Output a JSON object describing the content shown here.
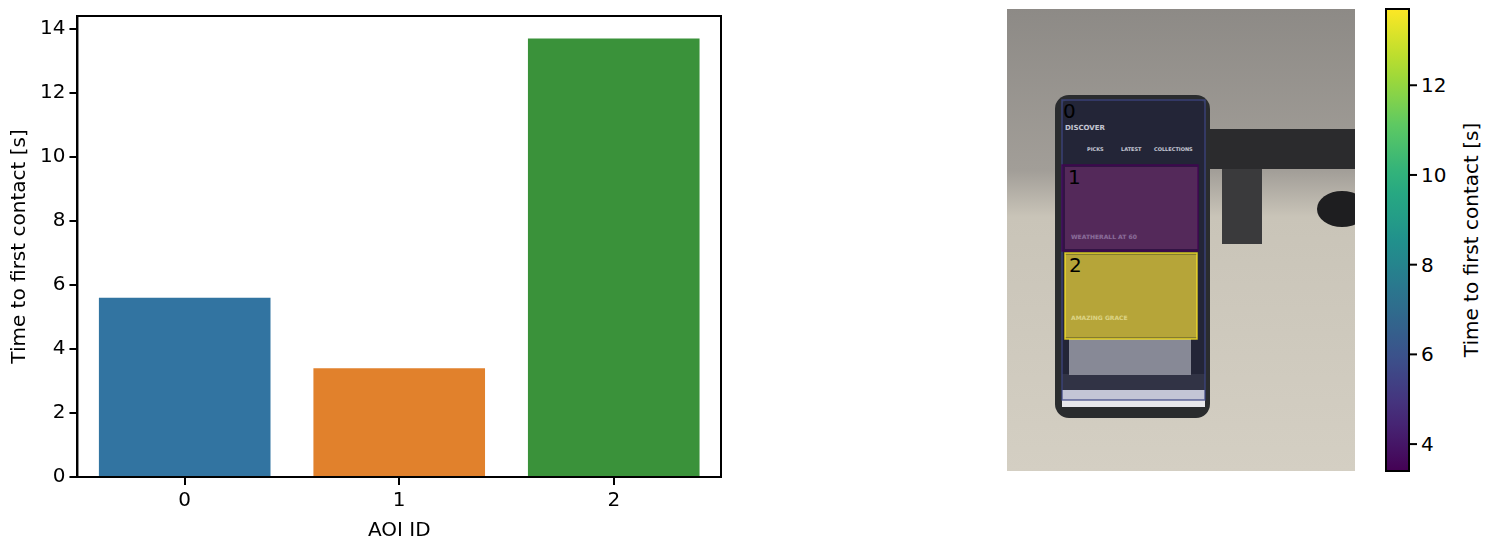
{
  "chart_data": [
    {
      "type": "bar",
      "categories": [
        "0",
        "1",
        "2"
      ],
      "values": [
        5.6,
        3.4,
        13.7
      ],
      "colors": [
        "#3274a1",
        "#e1812c",
        "#3a923a"
      ],
      "x_label": "AOI ID",
      "y_label": "Time to first contact [s]",
      "ylim": [
        0,
        14.4
      ],
      "yticks": [
        0,
        2,
        4,
        6,
        8,
        10,
        12,
        14
      ],
      "grid": false
    },
    {
      "type": "aoi_overlay",
      "aoi_ids": [
        0,
        1,
        2
      ],
      "values": [
        5.6,
        3.4,
        13.7
      ],
      "screen_texts": [
        "DISCOVER",
        "PICKS",
        "LATEST",
        "COLLECTIONS",
        "WEATHERALL AT 60",
        "AMAZING GRACE"
      ],
      "colorbar_label": "Time to first contact [s]",
      "colorbar_range": [
        3.4,
        13.7
      ],
      "colorbar_ticks": [
        4,
        6,
        8,
        10,
        12
      ]
    }
  ]
}
